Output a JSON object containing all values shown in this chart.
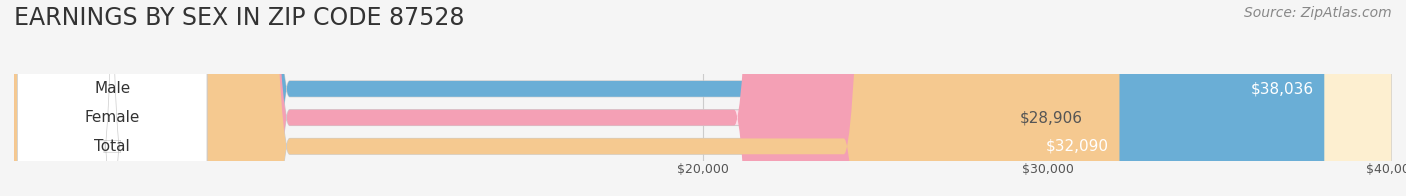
{
  "title": "EARNINGS BY SEX IN ZIP CODE 87528",
  "source_text": "Source: ZipAtlas.com",
  "categories": [
    "Male",
    "Female",
    "Total"
  ],
  "values": [
    38036,
    28906,
    32090
  ],
  "bar_colors": [
    "#6aaed6",
    "#f4a0b5",
    "#f5c990"
  ],
  "bar_bg_colors": [
    "#ddeeff",
    "#fde0ea",
    "#fdefd0"
  ],
  "label_colors": [
    "#ffffff",
    "#666666",
    "#ffffff"
  ],
  "label_inside": [
    true,
    false,
    true
  ],
  "xmin": 0,
  "xmax": 40000,
  "xticks": [
    20000,
    30000,
    40000
  ],
  "xtick_labels": [
    "$20,000",
    "$30,000",
    "$40,000"
  ],
  "background_color": "#f5f5f5",
  "title_fontsize": 17,
  "bar_label_fontsize": 11,
  "category_fontsize": 11,
  "source_fontsize": 10,
  "bar_height": 0.55
}
